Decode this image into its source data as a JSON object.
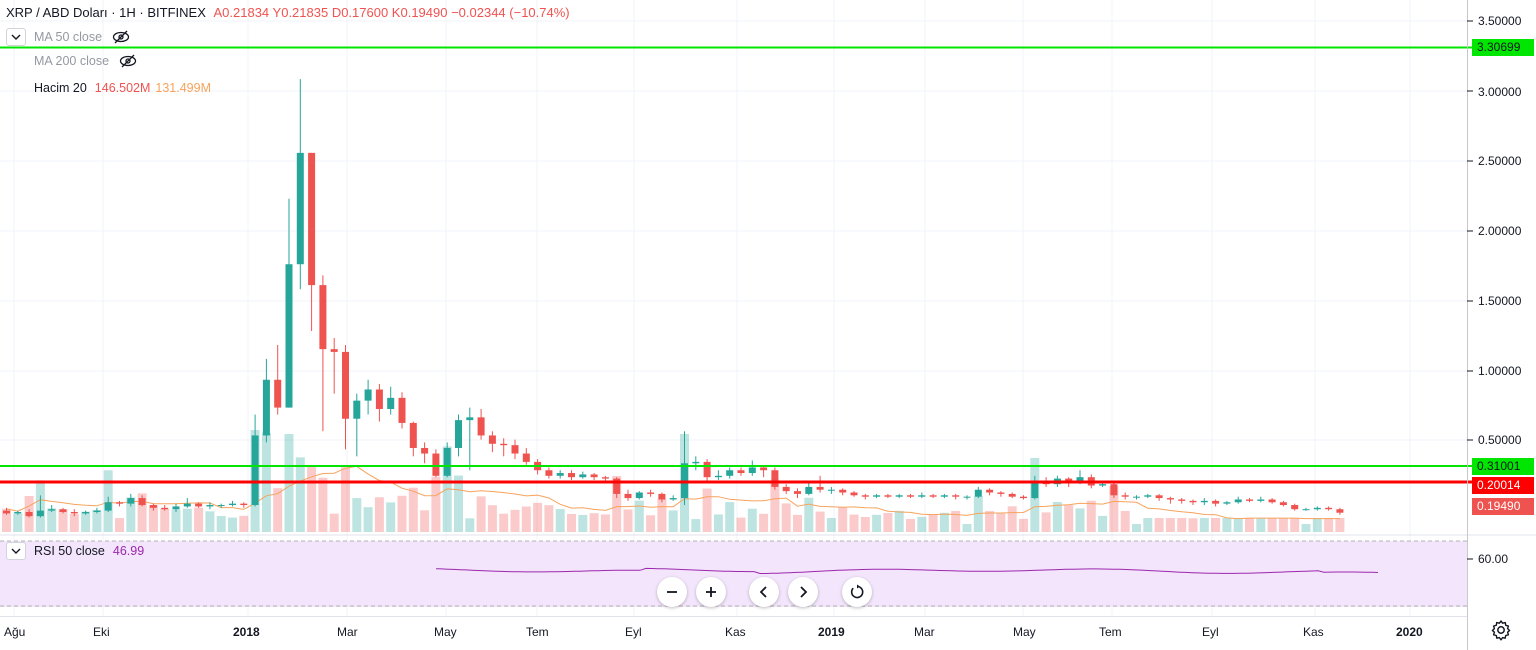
{
  "header": {
    "symbol": "XRP / ABD Doları · 1H · BITFINEX",
    "ohlc": "A0.21834  Y0.21835  D0.17600  K0.19490  −0.02344 (−10.74%)"
  },
  "indicators": {
    "ma50": "MA 50 close",
    "ma200": "MA 200 close",
    "volume_label": "Hacim 20",
    "volume_value1": "146.502M",
    "volume_value2": "131.499M",
    "rsi_label": "RSI 50 close",
    "rsi_value": "46.99"
  },
  "price_axis": {
    "ticks": [
      "3.50000",
      "3.00000",
      "2.50000",
      "2.00000",
      "1.50000",
      "1.00000",
      "0.50000"
    ],
    "tag_top": "3.30699",
    "tag_mid": "0.31001",
    "tag_red": "0.20014",
    "tag_last": "0.19490"
  },
  "rsi_axis": {
    "tick": "60.00"
  },
  "time_axis": [
    "Ağu",
    "Eki",
    "2018",
    "Mar",
    "May",
    "Tem",
    "Eyl",
    "Kas",
    "2019",
    "Mar",
    "May",
    "Tem",
    "Eyl",
    "Kas",
    "2020"
  ],
  "colors": {
    "up": "#26a69a",
    "down": "#ef5350",
    "support_line": "#00e600",
    "red_line": "#ff0000",
    "rsi_line": "#9c27b0",
    "rsi_bg": "#f3e5fb",
    "ma_line": "#f7a35c"
  },
  "icons": [
    "chevron-down-icon",
    "eye-off-icon",
    "minus-icon",
    "plus-icon",
    "chevron-left-icon",
    "chevron-right-icon",
    "reset-icon",
    "gear-icon"
  ]
}
